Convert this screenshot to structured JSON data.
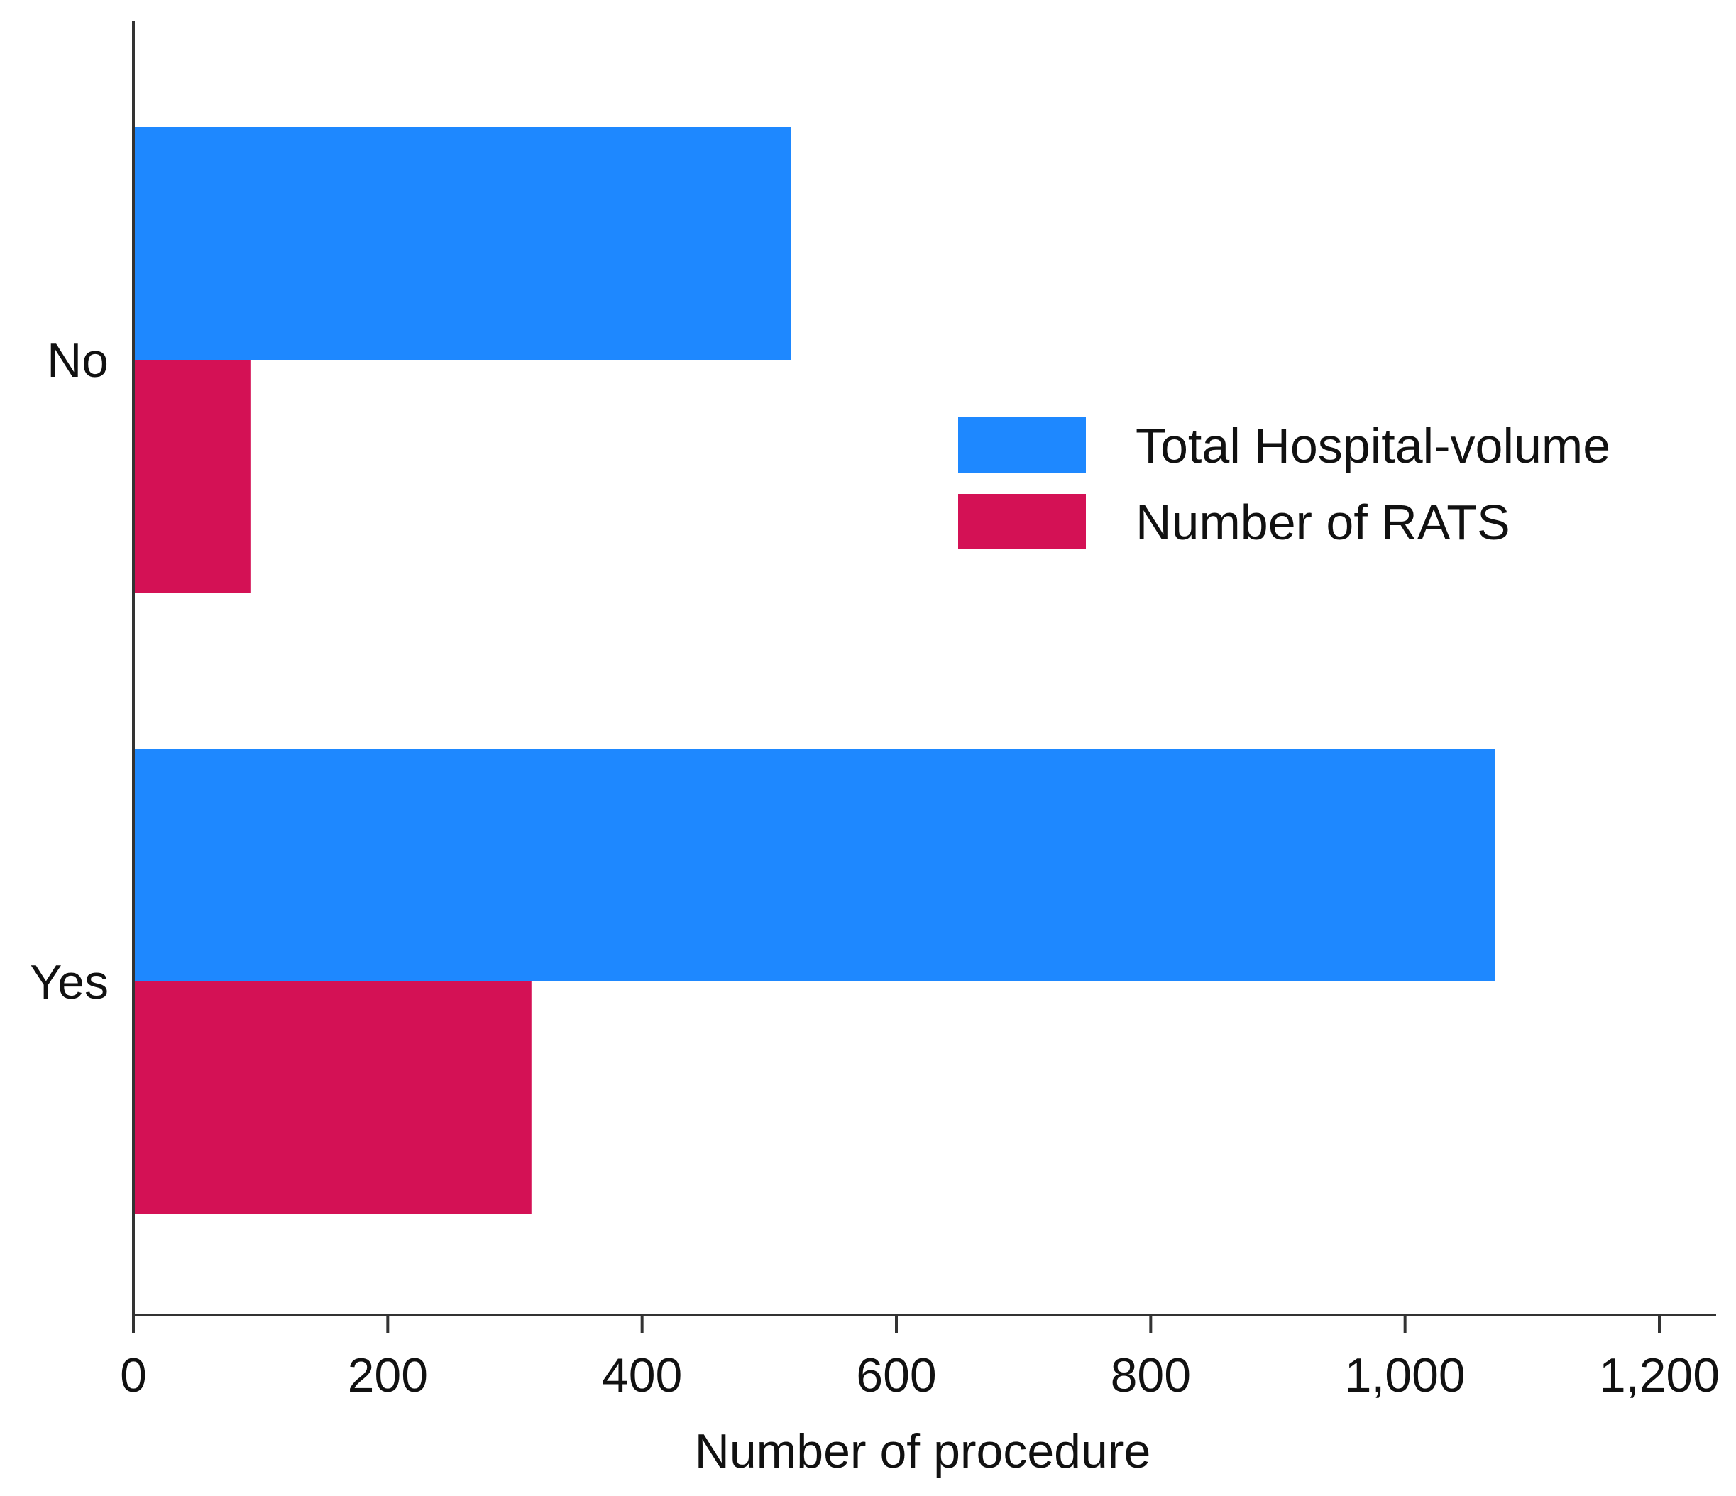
{
  "chart_data": {
    "type": "bar",
    "orientation": "horizontal",
    "categories": [
      "No",
      "Yes"
    ],
    "series": [
      {
        "name": "Total Hospital-volume",
        "values": [
          517,
          1071
        ],
        "color": "#1e88ff"
      },
      {
        "name": "Number of RATS",
        "values": [
          92,
          313
        ],
        "color": "#d41155"
      }
    ],
    "xlabel": "Number of procedure",
    "ylabel": "",
    "xlim": [
      0,
      1200
    ],
    "xticks": [
      0,
      200,
      400,
      600,
      800,
      1000,
      1200
    ],
    "xtick_labels": [
      "0",
      "200",
      "400",
      "600",
      "800",
      "1,000",
      "1,200"
    ],
    "grid": false,
    "legend_position": "right"
  }
}
